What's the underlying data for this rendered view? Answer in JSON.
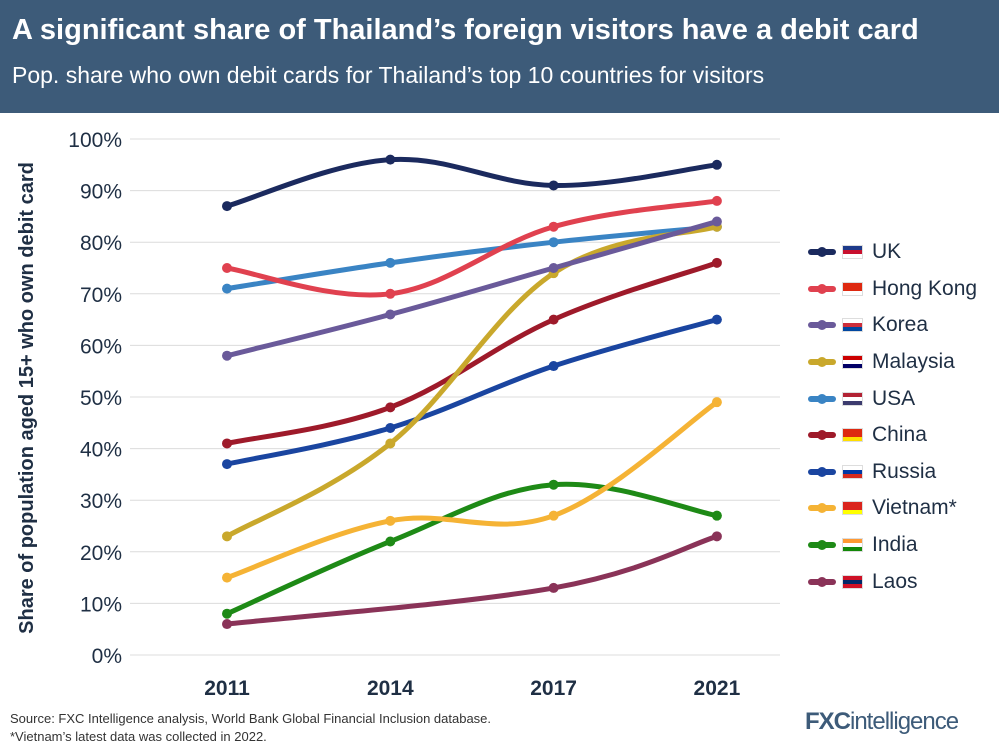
{
  "header": {
    "title": "A significant share of Thailand’s foreign visitors have a debit card",
    "subtitle": "Pop. share who own debit cards for Thailand’s top 10 countries for visitors"
  },
  "chart_data": {
    "type": "line",
    "ylabel": "Share of population aged 15+ who own debit card",
    "categories": [
      "2011",
      "2014",
      "2017",
      "2021"
    ],
    "ylim": [
      0,
      100
    ],
    "yticks": [
      "0%",
      "10%",
      "20%",
      "30%",
      "40%",
      "50%",
      "60%",
      "70%",
      "80%",
      "90%",
      "100%"
    ],
    "grid": true,
    "legend_placement": "right",
    "series": [
      {
        "name": "UK",
        "color": "#1b2a5e",
        "flag": [
          "#1d3a8a",
          "#c8102e",
          "#ffffff"
        ],
        "values": [
          87,
          96,
          91,
          95
        ]
      },
      {
        "name": "Hong Kong",
        "color": "#e0414f",
        "flag": [
          "#de2910",
          "#de2910",
          "#ffffff"
        ],
        "values": [
          75,
          70,
          83,
          88
        ]
      },
      {
        "name": "Korea",
        "color": "#6a5a9a",
        "flag": [
          "#ffffff",
          "#cd2e3a",
          "#0047a0"
        ],
        "values": [
          58,
          66,
          75,
          84
        ]
      },
      {
        "name": "Malaysia",
        "color": "#c9a82c",
        "flag": [
          "#cc0000",
          "#ffffff",
          "#010066"
        ],
        "values": [
          23,
          41,
          74,
          83
        ]
      },
      {
        "name": "USA",
        "color": "#3a84c4",
        "flag": [
          "#b22234",
          "#ffffff",
          "#3c3b6e"
        ],
        "values": [
          71,
          76,
          80,
          83
        ]
      },
      {
        "name": "China",
        "color": "#9e1a2a",
        "flag": [
          "#de2910",
          "#de2910",
          "#ffde00"
        ],
        "values": [
          41,
          48,
          65,
          76
        ]
      },
      {
        "name": "Russia",
        "color": "#1a45a0",
        "flag": [
          "#ffffff",
          "#0039a6",
          "#d52b1e"
        ],
        "values": [
          37,
          44,
          56,
          65
        ]
      },
      {
        "name": "Vietnam*",
        "color": "#f5b335",
        "flag": [
          "#da251d",
          "#da251d",
          "#ffff00"
        ],
        "values": [
          15,
          26,
          27,
          49
        ]
      },
      {
        "name": "India",
        "color": "#1e8a16",
        "flag": [
          "#ff9933",
          "#ffffff",
          "#138808"
        ],
        "values": [
          8,
          22,
          33,
          27
        ]
      },
      {
        "name": "Laos",
        "color": "#8a3358",
        "flag": [
          "#ce1126",
          "#002868",
          "#ce1126"
        ],
        "values": [
          6,
          null,
          13,
          23
        ]
      }
    ]
  },
  "footer": {
    "source": "Source: FXC Intelligence analysis, World Bank Global Financial Inclusion database.",
    "note": "*Vietnam’s latest data was collected in 2022.",
    "logo_bold": "FXC",
    "logo_rest": "intelligence"
  }
}
